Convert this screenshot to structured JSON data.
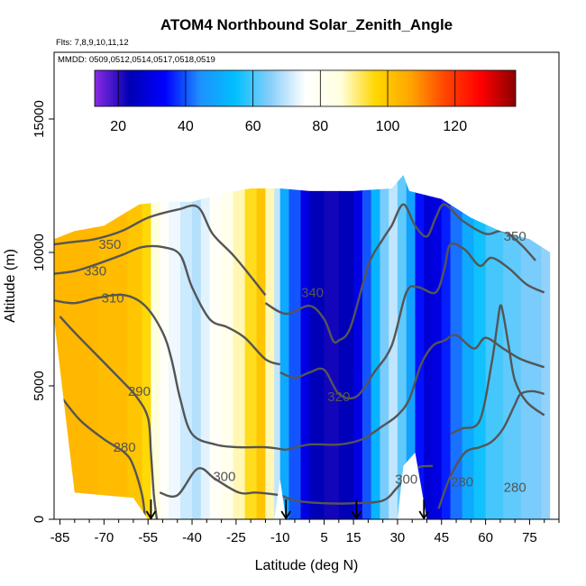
{
  "chart_data": {
    "type": "heatmap",
    "title": "ATOM4 Northbound Solar_Zenith_Angle",
    "subtitle_flights": "Flts: 7,8,9,10,11,12",
    "subtitle_dates": "MMDD: 0509,0512,0514,0517,0518,0519",
    "xlabel": "Latitude (deg N)",
    "ylabel": "Altitude (m)",
    "xlim": [
      -87,
      85
    ],
    "ylim": [
      0,
      17500
    ],
    "x_ticks": [
      -85,
      -70,
      -55,
      -40,
      -25,
      -10,
      5,
      15,
      30,
      45,
      60,
      75
    ],
    "y_ticks": [
      0,
      5000,
      10000,
      15000
    ],
    "colorbar": {
      "range": [
        13,
        138
      ],
      "ticks": [
        20,
        40,
        60,
        80,
        100,
        120
      ],
      "colors": [
        "#8a2be2",
        "#0000b4",
        "#0000ff",
        "#1e90ff",
        "#00bfff",
        "#87cefa",
        "#ffffff",
        "#ffffe0",
        "#ffd700",
        "#ffa500",
        "#ff4500",
        "#ff0000",
        "#8b0000"
      ]
    },
    "columns": [
      {
        "x0": -87,
        "x1": -82,
        "value": 103
      },
      {
        "x0": -82,
        "x1": -72,
        "value": 103
      },
      {
        "x0": -72,
        "x1": -62,
        "value": 102
      },
      {
        "x0": -62,
        "x1": -57,
        "value": 100
      },
      {
        "x0": -57,
        "x1": -54,
        "value": 96
      },
      {
        "x0": -54,
        "x1": -51,
        "value": 86
      },
      {
        "x0": -51,
        "x1": -48,
        "value": 78
      },
      {
        "x0": -48,
        "x1": -44,
        "value": 74
      },
      {
        "x0": -44,
        "x1": -40,
        "value": 71
      },
      {
        "x0": -40,
        "x1": -37,
        "value": 69
      },
      {
        "x0": -37,
        "x1": -34,
        "value": 73
      },
      {
        "x0": -34,
        "x1": -30,
        "value": 78
      },
      {
        "x0": -30,
        "x1": -26,
        "value": 82
      },
      {
        "x0": -26,
        "x1": -22,
        "value": 88
      },
      {
        "x0": -22,
        "x1": -18,
        "value": 95
      },
      {
        "x0": -18,
        "x1": -15,
        "value": 100
      },
      {
        "x0": -15,
        "x1": -12,
        "value": 88
      },
      {
        "x0": -12,
        "x1": -10,
        "value": 70
      },
      {
        "x0": -10,
        "x1": -7,
        "value": 50
      },
      {
        "x0": -7,
        "x1": -3,
        "value": 40
      },
      {
        "x0": -3,
        "x1": 0,
        "value": 30
      },
      {
        "x0": 0,
        "x1": 5,
        "value": 24
      },
      {
        "x0": 5,
        "x1": 10,
        "value": 22
      },
      {
        "x0": 10,
        "x1": 15,
        "value": 24
      },
      {
        "x0": 15,
        "x1": 18,
        "value": 30
      },
      {
        "x0": 18,
        "x1": 21,
        "value": 40
      },
      {
        "x0": 21,
        "x1": 24,
        "value": 52
      },
      {
        "x0": 24,
        "x1": 27,
        "value": 64
      },
      {
        "x0": 27,
        "x1": 30,
        "value": 70
      },
      {
        "x0": 30,
        "x1": 33,
        "value": 62
      },
      {
        "x0": 33,
        "x1": 36,
        "value": 48
      },
      {
        "x0": 36,
        "x1": 39,
        "value": 35
      },
      {
        "x0": 39,
        "x1": 42,
        "value": 28
      },
      {
        "x0": 42,
        "x1": 45,
        "value": 30
      },
      {
        "x0": 45,
        "x1": 48,
        "value": 36
      },
      {
        "x0": 48,
        "x1": 52,
        "value": 42
      },
      {
        "x0": 52,
        "x1": 56,
        "value": 50
      },
      {
        "x0": 56,
        "x1": 60,
        "value": 56
      },
      {
        "x0": 60,
        "x1": 66,
        "value": 60
      },
      {
        "x0": 66,
        "x1": 72,
        "value": 62
      },
      {
        "x0": 72,
        "x1": 79,
        "value": 64
      },
      {
        "x0": 79,
        "x1": 82,
        "value": 66
      }
    ],
    "profile_top": [
      [
        -87,
        10500
      ],
      [
        -80,
        10800
      ],
      [
        -70,
        11000
      ],
      [
        -58,
        11800
      ],
      [
        -50,
        11900
      ],
      [
        -40,
        11900
      ],
      [
        -30,
        12200
      ],
      [
        -20,
        12400
      ],
      [
        -10,
        12400
      ],
      [
        0,
        12300
      ],
      [
        15,
        12300
      ],
      [
        28,
        12400
      ],
      [
        32,
        12900
      ],
      [
        34,
        12300
      ],
      [
        45,
        12000
      ],
      [
        55,
        11300
      ],
      [
        65,
        10800
      ],
      [
        75,
        10500
      ],
      [
        82,
        10000
      ]
    ],
    "profile_bottom": [
      [
        -87,
        7500
      ],
      [
        -80,
        1000
      ],
      [
        -60,
        800
      ],
      [
        -55,
        0
      ],
      [
        -45,
        0
      ],
      [
        -15,
        0
      ],
      [
        -12,
        0
      ],
      [
        -10,
        1500
      ],
      [
        -8,
        0
      ],
      [
        20,
        0
      ],
      [
        30,
        0
      ],
      [
        32,
        2000
      ],
      [
        36,
        2500
      ],
      [
        40,
        0
      ],
      [
        82,
        0
      ]
    ],
    "contour_levels": [
      280,
      290,
      300,
      310,
      320,
      330,
      340,
      350
    ],
    "contour_labels": [
      {
        "text": "350",
        "x": -68,
        "y": 10300
      },
      {
        "text": "330",
        "x": -73,
        "y": 9300
      },
      {
        "text": "310",
        "x": -67,
        "y": 8300
      },
      {
        "text": "290",
        "x": -58,
        "y": 4800
      },
      {
        "text": "280",
        "x": -63,
        "y": 2700
      },
      {
        "text": "300",
        "x": -29,
        "y": 1600
      },
      {
        "text": "340",
        "x": 1,
        "y": 8500
      },
      {
        "text": "320",
        "x": 10,
        "y": 4600
      },
      {
        "text": "300",
        "x": 33,
        "y": 1500
      },
      {
        "text": "280",
        "x": 52,
        "y": 1400
      },
      {
        "text": "280",
        "x": 70,
        "y": 1200
      },
      {
        "text": "350",
        "x": 70,
        "y": 10600
      }
    ],
    "contour_lines": [
      {
        "level": 350,
        "points": [
          [
            -87,
            10300
          ],
          [
            -80,
            10400
          ],
          [
            -73,
            10500
          ],
          [
            -64,
            10800
          ],
          [
            -55,
            11300
          ],
          [
            -45,
            11600
          ],
          [
            -38,
            11700
          ],
          [
            -33,
            10700
          ],
          [
            -26,
            9900
          ],
          [
            -20,
            9100
          ],
          [
            -15,
            8400
          ]
        ]
      },
      {
        "level": 330,
        "points": [
          [
            -87,
            9200
          ],
          [
            -80,
            9300
          ],
          [
            -74,
            9500
          ],
          [
            -64,
            9900
          ],
          [
            -57,
            10200
          ],
          [
            -50,
            10200
          ],
          [
            -44,
            9900
          ],
          [
            -40,
            8700
          ],
          [
            -34,
            7500
          ],
          [
            -28,
            7200
          ],
          [
            -22,
            6800
          ],
          [
            -15,
            6000
          ],
          [
            -10,
            5800
          ]
        ]
      },
      {
        "level": 310,
        "points": [
          [
            -87,
            8200
          ],
          [
            -80,
            8100
          ],
          [
            -72,
            8300
          ],
          [
            -63,
            8400
          ],
          [
            -56,
            8000
          ],
          [
            -50,
            7000
          ],
          [
            -47,
            6000
          ],
          [
            -44,
            4500
          ],
          [
            -40,
            3200
          ],
          [
            -32,
            2800
          ],
          [
            -24,
            2700
          ],
          [
            -15,
            2700
          ],
          [
            -8,
            2600
          ]
        ]
      },
      {
        "level": 290,
        "points": [
          [
            -85,
            7600
          ],
          [
            -80,
            7000
          ],
          [
            -72,
            6100
          ],
          [
            -64,
            5200
          ],
          [
            -59,
            4600
          ],
          [
            -55,
            3800
          ],
          [
            -54,
            2500
          ],
          [
            -53,
            900
          ],
          [
            -52,
            0
          ]
        ]
      },
      {
        "level": 280,
        "points": [
          [
            -84,
            4500
          ],
          [
            -78,
            3700
          ],
          [
            -70,
            3000
          ],
          [
            -63,
            2500
          ],
          [
            -60,
            2000
          ],
          [
            -57,
            900
          ],
          [
            -56,
            0
          ]
        ]
      },
      {
        "level": 300,
        "points": [
          [
            -51,
            1000
          ],
          [
            -45,
            900
          ],
          [
            -38,
            1900
          ],
          [
            -32,
            1500
          ],
          [
            -24,
            1000
          ],
          [
            -18,
            1000
          ],
          [
            -10,
            900
          ],
          [
            -5,
            700
          ],
          [
            5,
            600
          ],
          [
            15,
            600
          ],
          [
            25,
            700
          ],
          [
            30,
            1200
          ],
          [
            36,
            1900
          ],
          [
            42,
            2000
          ]
        ]
      },
      {
        "level": 340,
        "points": [
          [
            -15,
            8100
          ],
          [
            -8,
            7700
          ],
          [
            0,
            8000
          ],
          [
            5,
            7500
          ],
          [
            8,
            6700
          ],
          [
            10,
            6700
          ],
          [
            14,
            7200
          ],
          [
            20,
            9500
          ],
          [
            25,
            10500
          ],
          [
            28,
            11000
          ],
          [
            32,
            11800
          ],
          [
            36,
            11000
          ],
          [
            40,
            10600
          ],
          [
            43,
            11300
          ],
          [
            46,
            11800
          ],
          [
            52,
            11200
          ],
          [
            60,
            10700
          ],
          [
            66,
            10800
          ],
          [
            72,
            10300
          ],
          [
            77,
            9700
          ]
        ]
      },
      {
        "level": 320,
        "points": [
          [
            -10,
            5500
          ],
          [
            -5,
            5300
          ],
          [
            0,
            5500
          ],
          [
            5,
            5600
          ],
          [
            10,
            4700
          ],
          [
            16,
            4600
          ],
          [
            22,
            5500
          ],
          [
            28,
            6500
          ],
          [
            33,
            8500
          ],
          [
            37,
            8700
          ],
          [
            43,
            8500
          ],
          [
            46,
            9400
          ],
          [
            48,
            10300
          ],
          [
            53,
            10100
          ],
          [
            58,
            9500
          ],
          [
            62,
            9800
          ],
          [
            68,
            9400
          ],
          [
            74,
            8800
          ],
          [
            80,
            8500
          ]
        ]
      },
      {
        "level": 310,
        "points": [
          [
            -8,
            2600
          ],
          [
            0,
            2800
          ],
          [
            10,
            2800
          ],
          [
            18,
            3000
          ],
          [
            25,
            3500
          ],
          [
            30,
            3900
          ],
          [
            34,
            4500
          ],
          [
            38,
            5800
          ],
          [
            42,
            6500
          ],
          [
            46,
            6700
          ],
          [
            50,
            6900
          ],
          [
            56,
            6400
          ],
          [
            60,
            6800
          ],
          [
            66,
            6400
          ],
          [
            72,
            6000
          ],
          [
            80,
            5700
          ]
        ]
      },
      {
        "level": 290,
        "points": [
          [
            48,
            3200
          ],
          [
            52,
            3400
          ],
          [
            58,
            3700
          ],
          [
            62,
            5800
          ],
          [
            64,
            7300
          ],
          [
            65,
            8000
          ],
          [
            66,
            7700
          ],
          [
            68,
            6400
          ],
          [
            70,
            5200
          ],
          [
            74,
            4400
          ],
          [
            80,
            3900
          ]
        ]
      },
      {
        "level": 280,
        "points": [
          [
            44,
            400
          ],
          [
            48,
            1600
          ],
          [
            53,
            2500
          ],
          [
            58,
            2700
          ],
          [
            62,
            2900
          ],
          [
            66,
            3400
          ],
          [
            70,
            4300
          ],
          [
            72,
            4700
          ],
          [
            76,
            4800
          ],
          [
            80,
            4700
          ]
        ]
      }
    ],
    "flight_markers": [
      -54,
      -8,
      16,
      39
    ]
  }
}
